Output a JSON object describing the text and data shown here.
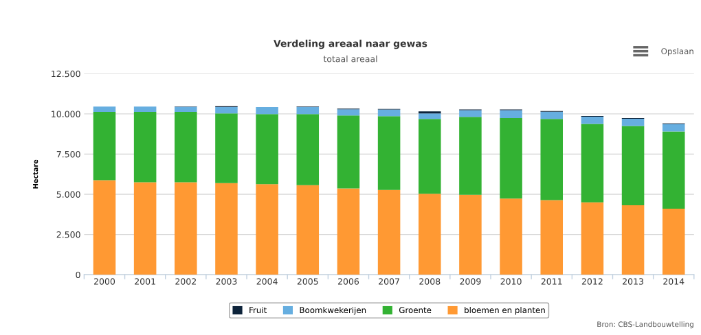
{
  "chart_data": {
    "type": "bar",
    "title": "Verdeling areaal naar gewas",
    "subtitle": "totaal areaal",
    "ylabel": "Hectare",
    "categories": [
      "2000",
      "2001",
      "2002",
      "2003",
      "2004",
      "2005",
      "2006",
      "2007",
      "2008",
      "2009",
      "2010",
      "2011",
      "2012",
      "2013",
      "2014"
    ],
    "stacked": true,
    "series": [
      {
        "name": "bloemen en planten",
        "color": "#ff9933",
        "values": [
          5880,
          5750,
          5750,
          5700,
          5630,
          5570,
          5360,
          5270,
          5030,
          4970,
          4730,
          4640,
          4500,
          4320,
          4100
        ]
      },
      {
        "name": "Groente",
        "color": "#33b233",
        "values": [
          4240,
          4370,
          4370,
          4330,
          4360,
          4420,
          4540,
          4590,
          4660,
          4840,
          5010,
          5050,
          4880,
          4930,
          4810
        ]
      },
      {
        "name": "Boomkwekerijen",
        "color": "#66aee0",
        "values": [
          340,
          340,
          320,
          390,
          430,
          430,
          390,
          410,
          340,
          420,
          490,
          450,
          450,
          450,
          460
        ]
      },
      {
        "name": "Fruit",
        "color": "#0d233a",
        "values": [
          0,
          0,
          30,
          60,
          0,
          40,
          40,
          40,
          130,
          40,
          40,
          40,
          40,
          40,
          40
        ]
      }
    ],
    "ylim": [
      0,
      12500
    ],
    "yticks": [
      {
        "value": 0,
        "label": "0"
      },
      {
        "value": 2500,
        "label": "2.500"
      },
      {
        "value": 5000,
        "label": "5.000"
      },
      {
        "value": 7500,
        "label": "7.500"
      },
      {
        "value": 10000,
        "label": "10.000"
      },
      {
        "value": 12500,
        "label": "12.500"
      }
    ],
    "grid": "y",
    "legend": "bottom",
    "annotations": [
      "Opslaan",
      "Bron: CBS-Landbouwtelling"
    ]
  }
}
